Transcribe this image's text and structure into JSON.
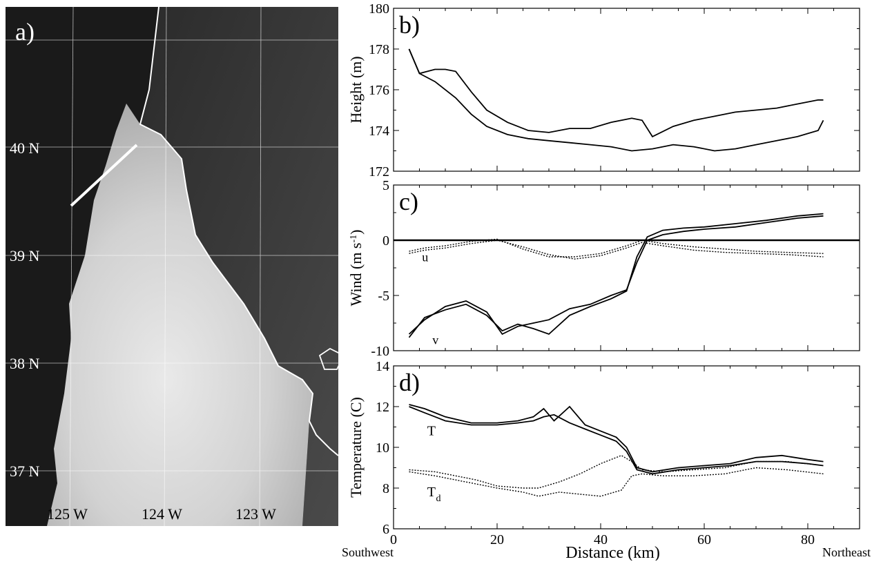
{
  "map": {
    "panel_label": "a)",
    "lat_labels": [
      "40 N",
      "39 N",
      "38 N",
      "37 N"
    ],
    "lon_labels": [
      "125 W",
      "124 W",
      "123 W"
    ]
  },
  "chart_data": [
    {
      "type": "line",
      "panel_label": "b)",
      "ylabel": "Height (m)",
      "xlim": [
        0,
        90
      ],
      "ylim": [
        172,
        180
      ],
      "yticks": [
        172,
        174,
        176,
        178,
        180
      ],
      "series": [
        {
          "x": [
            3,
            5,
            8,
            12,
            15,
            18,
            22,
            26,
            30,
            34,
            38,
            42,
            46,
            50,
            54,
            58,
            62,
            66,
            70,
            74,
            78,
            82,
            83
          ],
          "values": [
            178,
            176.8,
            176.4,
            175.6,
            174.8,
            174.2,
            173.8,
            173.6,
            173.5,
            173.4,
            173.3,
            173.2,
            173.0,
            173.1,
            173.3,
            173.2,
            173.0,
            173.1,
            173.3,
            173.5,
            173.7,
            174.0,
            174.5
          ]
        },
        {
          "x": [
            3,
            5,
            8,
            10,
            12,
            15,
            18,
            22,
            26,
            30,
            34,
            38,
            42,
            46,
            48,
            50,
            54,
            58,
            62,
            66,
            70,
            74,
            78,
            82,
            83
          ],
          "values": [
            178,
            176.8,
            177.0,
            177.0,
            176.9,
            175.9,
            175.0,
            174.4,
            174.0,
            173.9,
            174.1,
            174.1,
            174.4,
            174.6,
            174.5,
            173.7,
            174.2,
            174.5,
            174.7,
            174.9,
            175.0,
            175.1,
            175.3,
            175.5,
            175.5
          ]
        }
      ]
    },
    {
      "type": "line",
      "panel_label": "c)",
      "ylabel": "Wind (m s-1)",
      "xlim": [
        0,
        90
      ],
      "ylim": [
        -10,
        5
      ],
      "yticks": [
        -10,
        -5,
        0,
        5
      ],
      "series_labels": [
        "u",
        "v"
      ],
      "series": [
        {
          "name": "u",
          "style": "dotted",
          "x": [
            3,
            6,
            10,
            15,
            20,
            25,
            30,
            35,
            40,
            45,
            48,
            52,
            58,
            64,
            70,
            76,
            83
          ],
          "values": [
            -1.0,
            -0.7,
            -0.5,
            -0.1,
            0.1,
            -0.8,
            -1.5,
            -1.5,
            -1.2,
            -0.5,
            0.0,
            -0.3,
            -0.6,
            -0.8,
            -1.0,
            -1.1,
            -1.2
          ]
        },
        {
          "name": "u",
          "style": "dotted",
          "x": [
            3,
            6,
            10,
            15,
            20,
            25,
            30,
            35,
            40,
            45,
            48,
            52,
            58,
            64,
            70,
            76,
            83
          ],
          "values": [
            -1.2,
            -0.9,
            -0.7,
            -0.3,
            0.0,
            -0.6,
            -1.3,
            -1.7,
            -1.4,
            -0.7,
            -0.2,
            -0.5,
            -0.9,
            -1.1,
            -1.2,
            -1.3,
            -1.5
          ]
        },
        {
          "name": "v",
          "style": "solid",
          "x": [
            3,
            6,
            10,
            14,
            18,
            21,
            24,
            27,
            30,
            34,
            38,
            42,
            45,
            47,
            49,
            52,
            56,
            60,
            66,
            72,
            78,
            83
          ],
          "values": [
            -8.5,
            -7.2,
            -6.0,
            -5.5,
            -6.5,
            -8.5,
            -7.8,
            -7.5,
            -7.2,
            -6.2,
            -5.8,
            -5.0,
            -4.5,
            -2.0,
            0.0,
            0.5,
            0.8,
            1.0,
            1.2,
            1.6,
            2.0,
            2.2
          ]
        },
        {
          "name": "v",
          "style": "solid",
          "x": [
            3,
            6,
            10,
            14,
            18,
            21,
            24,
            27,
            30,
            34,
            38,
            42,
            45,
            47,
            49,
            52,
            56,
            60,
            66,
            72,
            78,
            83
          ],
          "values": [
            -8.8,
            -7.0,
            -6.3,
            -5.8,
            -6.8,
            -8.2,
            -7.6,
            -8.0,
            -8.5,
            -6.8,
            -6.0,
            -5.3,
            -4.6,
            -1.5,
            0.3,
            0.9,
            1.1,
            1.2,
            1.5,
            1.8,
            2.2,
            2.4
          ]
        }
      ]
    },
    {
      "type": "line",
      "panel_label": "d)",
      "ylabel": "Temperature (C)",
      "xlabel": "Distance (km)",
      "x_end_labels": [
        "Southwest",
        "Northeast"
      ],
      "xlim": [
        0,
        90
      ],
      "ylim": [
        6,
        14
      ],
      "yticks": [
        6,
        8,
        10,
        12,
        14
      ],
      "xticks": [
        0,
        20,
        40,
        60,
        80
      ],
      "series_labels": [
        "T",
        "T",
        "d"
      ],
      "series": [
        {
          "name": "T",
          "style": "solid",
          "x": [
            3,
            6,
            10,
            15,
            20,
            24,
            27,
            29,
            31,
            34,
            37,
            40,
            43,
            45,
            47,
            50,
            55,
            60,
            65,
            70,
            75,
            80,
            83
          ],
          "values": [
            12.1,
            11.9,
            11.5,
            11.2,
            11.2,
            11.3,
            11.5,
            11.9,
            11.3,
            12.0,
            11.1,
            10.8,
            10.5,
            10.0,
            9.0,
            8.8,
            9.0,
            9.1,
            9.2,
            9.5,
            9.6,
            9.4,
            9.3
          ]
        },
        {
          "name": "T",
          "style": "solid",
          "x": [
            3,
            6,
            10,
            15,
            20,
            24,
            27,
            29,
            31,
            34,
            37,
            40,
            43,
            45,
            47,
            50,
            55,
            60,
            65,
            70,
            75,
            80,
            83
          ],
          "values": [
            12.0,
            11.7,
            11.3,
            11.1,
            11.1,
            11.2,
            11.3,
            11.5,
            11.6,
            11.2,
            10.9,
            10.6,
            10.3,
            9.8,
            8.9,
            8.7,
            8.9,
            9.0,
            9.1,
            9.3,
            9.3,
            9.2,
            9.1
          ]
        },
        {
          "name": "Td",
          "style": "dotted",
          "x": [
            3,
            8,
            12,
            16,
            20,
            25,
            28,
            32,
            36,
            40,
            44,
            46,
            48,
            52,
            58,
            64,
            70,
            76,
            83
          ],
          "values": [
            8.9,
            8.8,
            8.6,
            8.4,
            8.1,
            8.0,
            8.0,
            8.3,
            8.7,
            9.2,
            9.6,
            9.3,
            8.9,
            8.8,
            8.9,
            9.0,
            9.3,
            9.3,
            9.1
          ]
        },
        {
          "name": "Td",
          "style": "dotted",
          "x": [
            3,
            8,
            12,
            16,
            20,
            25,
            28,
            32,
            36,
            40,
            44,
            46,
            48,
            52,
            58,
            64,
            70,
            76,
            83
          ],
          "values": [
            8.8,
            8.6,
            8.4,
            8.2,
            8.0,
            7.8,
            7.6,
            7.8,
            7.7,
            7.6,
            7.9,
            8.6,
            8.7,
            8.6,
            8.6,
            8.7,
            9.0,
            8.9,
            8.7
          ]
        }
      ]
    }
  ]
}
